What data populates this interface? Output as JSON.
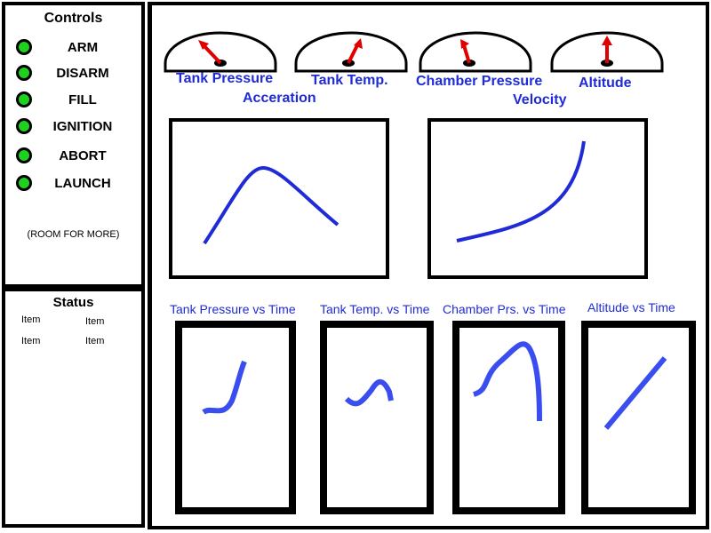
{
  "controls": {
    "title": "Controls",
    "buttons": [
      {
        "label": "ARM"
      },
      {
        "label": "DISARM"
      },
      {
        "label": "FILL"
      },
      {
        "label": "IGNITION"
      },
      {
        "label": "ABORT"
      },
      {
        "label": "LAUNCH"
      }
    ],
    "note": "(ROOM FOR MORE)"
  },
  "status": {
    "title": "Status",
    "items": [
      "Item",
      "Item",
      "Item",
      "Item"
    ]
  },
  "gauges": [
    {
      "label": "Tank Pressure"
    },
    {
      "label": "Tank Temp."
    },
    {
      "label": "Chamber Pressure"
    },
    {
      "label": "Altitude"
    }
  ],
  "charts": {
    "acceleration": {
      "label": "Acceration"
    },
    "velocity": {
      "label": "Velocity"
    }
  },
  "small_plots": [
    {
      "label": "Tank Pressure vs Time"
    },
    {
      "label": "Tank Temp. vs Time"
    },
    {
      "label": "Chamber Prs. vs Time"
    },
    {
      "label": "Altitude vs Time"
    }
  ],
  "colors": {
    "led": "#1fd11f",
    "accent": "#1f2bd6",
    "needle": "#e00000"
  }
}
